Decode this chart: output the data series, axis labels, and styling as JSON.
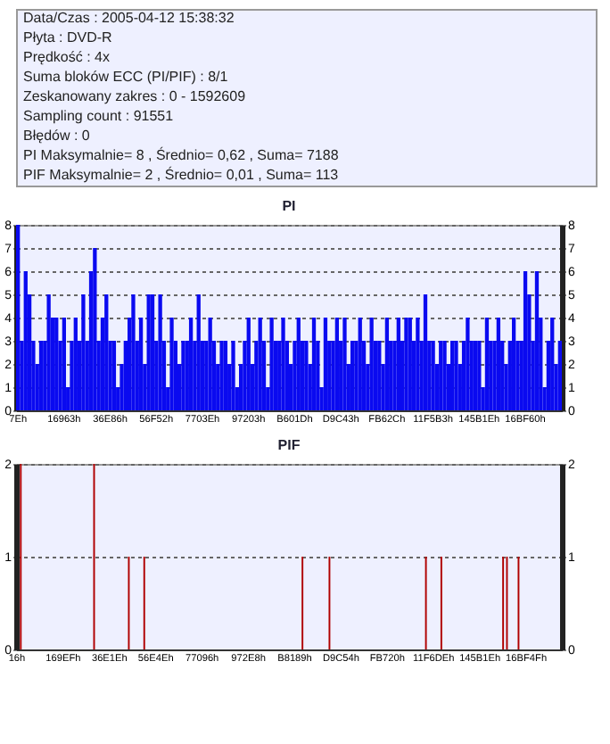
{
  "chart_data": [
    {
      "type": "bar",
      "title": "PI",
      "annotations": [
        "Data/Czas : 2005-04-12 15:38:32",
        "Płyta : DVD-R",
        "Prędkość : 4x",
        "Suma bloków ECC (PI/PIF) : 8/1",
        "Zeskanowany zakres : 0 - 1592609",
        "Sampling count : 91551",
        "Błędów : 0",
        "PI Maksymalnie= 8 , Średnio= 0,62 , Suma= 7188",
        "PIF Maksymalnie= 2 , Średnio= 0,01 , Suma= 113"
      ],
      "categories": [
        "7Eh",
        null,
        null,
        null,
        null,
        null,
        null,
        null,
        null,
        null,
        null,
        null,
        "16963h",
        null,
        null,
        null,
        null,
        null,
        null,
        null,
        null,
        null,
        null,
        null,
        "36E86h",
        null,
        null,
        null,
        null,
        null,
        null,
        null,
        null,
        null,
        null,
        null,
        "56F52h",
        null,
        null,
        null,
        null,
        null,
        null,
        null,
        null,
        null,
        null,
        null,
        "7703Eh",
        null,
        null,
        null,
        null,
        null,
        null,
        null,
        null,
        null,
        null,
        null,
        "97203h",
        null,
        null,
        null,
        null,
        null,
        null,
        null,
        null,
        null,
        null,
        null,
        "B601Dh",
        null,
        null,
        null,
        null,
        null,
        null,
        null,
        null,
        null,
        null,
        null,
        "D9C43h",
        null,
        null,
        null,
        null,
        null,
        null,
        null,
        null,
        null,
        null,
        null,
        "FB62Ch",
        null,
        null,
        null,
        null,
        null,
        null,
        null,
        null,
        null,
        null,
        null,
        "11F5B3h",
        null,
        null,
        null,
        null,
        null,
        null,
        null,
        null,
        null,
        null,
        null,
        "145B1Eh",
        null,
        null,
        null,
        null,
        null,
        null,
        null,
        null,
        null,
        null,
        null,
        "16BF60h",
        null,
        null,
        null,
        null,
        null,
        null,
        null,
        null,
        null
      ],
      "values": [
        8,
        3,
        6,
        5,
        3,
        2,
        3,
        3,
        5,
        4,
        4,
        3,
        4,
        1,
        3,
        4,
        3,
        5,
        3,
        6,
        7,
        3,
        4,
        5,
        3,
        3,
        1,
        2,
        3,
        4,
        5,
        3,
        4,
        2,
        5,
        5,
        3,
        5,
        3,
        1,
        4,
        3,
        2,
        3,
        3,
        4,
        3,
        5,
        3,
        3,
        4,
        3,
        2,
        3,
        3,
        2,
        3,
        1,
        2,
        3,
        4,
        2,
        3,
        4,
        3,
        1,
        4,
        3,
        3,
        4,
        3,
        2,
        3,
        4,
        3,
        3,
        2,
        4,
        3,
        1,
        4,
        3,
        3,
        4,
        3,
        4,
        2,
        3,
        3,
        4,
        3,
        2,
        4,
        3,
        3,
        2,
        4,
        3,
        3,
        4,
        3,
        4,
        4,
        3,
        4,
        3,
        5,
        3,
        3,
        2,
        3,
        3,
        2,
        3,
        3,
        2,
        3,
        4,
        3,
        3,
        3,
        1,
        4,
        3,
        3,
        4,
        3,
        2,
        3,
        4,
        3,
        3,
        6,
        5,
        3,
        6,
        4,
        1,
        3,
        4,
        2,
        3
      ],
      "color": "#0a0af0",
      "ylim": [
        0,
        8
      ],
      "yticks": [
        0,
        1,
        2,
        3,
        4,
        5,
        6,
        7,
        8
      ],
      "y2lim": [
        0,
        8
      ],
      "y2ticks": [
        0,
        1,
        2,
        3,
        4,
        5,
        6,
        7,
        8
      ],
      "grid": "y"
    },
    {
      "type": "bar",
      "title": "PIF",
      "categories": [
        "16h",
        null,
        null,
        null,
        null,
        null,
        null,
        null,
        null,
        null,
        null,
        null,
        "169EFh",
        null,
        null,
        null,
        null,
        null,
        null,
        null,
        null,
        null,
        null,
        null,
        "36E1Eh",
        null,
        null,
        null,
        null,
        null,
        null,
        null,
        null,
        null,
        null,
        null,
        "56E4Eh",
        null,
        null,
        null,
        null,
        null,
        null,
        null,
        null,
        null,
        null,
        null,
        "77096h",
        null,
        null,
        null,
        null,
        null,
        null,
        null,
        null,
        null,
        null,
        null,
        "972E8h",
        null,
        null,
        null,
        null,
        null,
        null,
        null,
        null,
        null,
        null,
        null,
        "B8189h",
        null,
        null,
        null,
        null,
        null,
        null,
        null,
        null,
        null,
        null,
        null,
        "D9C54h",
        null,
        null,
        null,
        null,
        null,
        null,
        null,
        null,
        null,
        null,
        null,
        "FB720h",
        null,
        null,
        null,
        null,
        null,
        null,
        null,
        null,
        null,
        null,
        null,
        "11F6DEh",
        null,
        null,
        null,
        null,
        null,
        null,
        null,
        null,
        null,
        null,
        null,
        "145B1Eh",
        null,
        null,
        null,
        null,
        null,
        null,
        null,
        null,
        null,
        null,
        null,
        "16BF4Fh",
        null,
        null,
        null,
        null,
        null,
        null,
        null,
        null,
        null
      ],
      "values": [
        0,
        2,
        0,
        0,
        0,
        0,
        0,
        0,
        0,
        0,
        0,
        0,
        0,
        0,
        0,
        0,
        0,
        0,
        0,
        0,
        2,
        0,
        0,
        0,
        0,
        0,
        0,
        0,
        0,
        1,
        0,
        0,
        0,
        1,
        0,
        0,
        0,
        0,
        0,
        0,
        0,
        0,
        0,
        0,
        0,
        0,
        0,
        0,
        0,
        0,
        0,
        0,
        0,
        0,
        0,
        0,
        0,
        0,
        0,
        0,
        0,
        0,
        0,
        0,
        0,
        0,
        0,
        0,
        0,
        0,
        0,
        0,
        0,
        0,
        1,
        0,
        0,
        0,
        0,
        0,
        0,
        1,
        0,
        0,
        0,
        0,
        0,
        0,
        0,
        0,
        0,
        0,
        0,
        0,
        0,
        0,
        0,
        0,
        0,
        0,
        0,
        0,
        0,
        0,
        0,
        0,
        1,
        0,
        0,
        0,
        1,
        0,
        0,
        0,
        0,
        0,
        0,
        0,
        0,
        0,
        0,
        0,
        0,
        0,
        0,
        0,
        1,
        1,
        0,
        0,
        1,
        0,
        0,
        0,
        0,
        0,
        0,
        0,
        0,
        0,
        0,
        0
      ],
      "color": "#b00000",
      "ylim": [
        0,
        2
      ],
      "yticks": [
        0,
        1,
        2
      ],
      "y2lim": [
        0,
        2
      ],
      "y2ticks": [
        0,
        1,
        2
      ],
      "grid": "y"
    }
  ]
}
